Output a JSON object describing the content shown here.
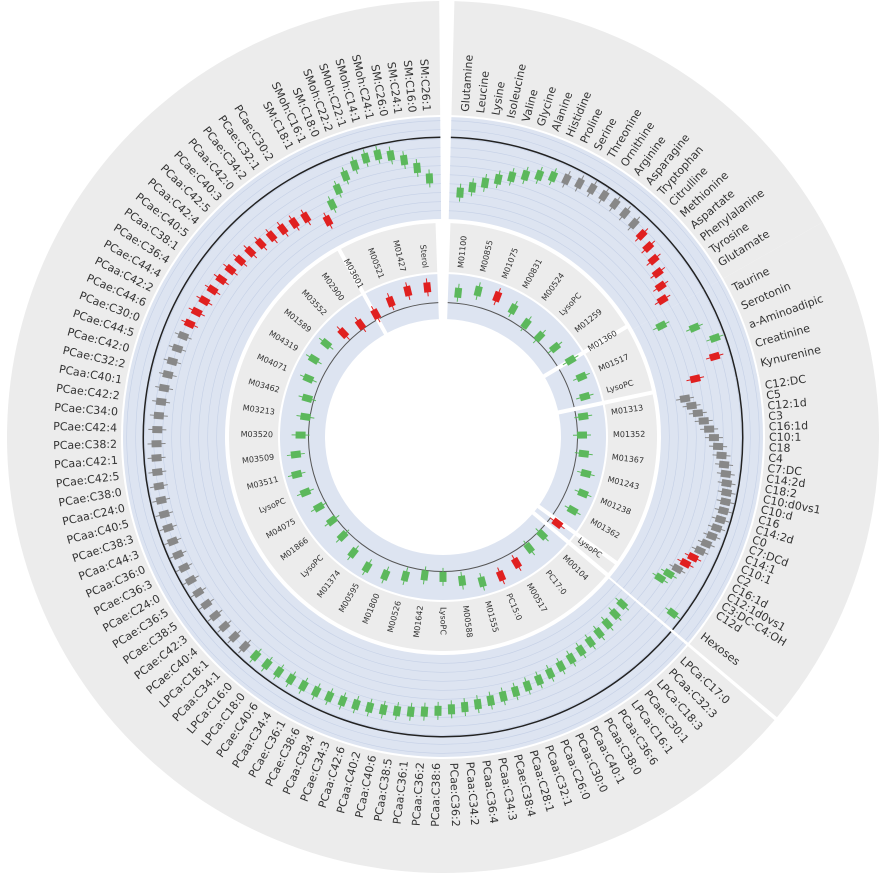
{
  "chart_data": {
    "type": "circos",
    "groups": [
      {
        "labels": [
          "Glutamine",
          "Leucine",
          "Lysine",
          "Isoleucine",
          "Valine",
          "Glycine",
          "Alanine",
          "Histidine",
          "Proline",
          "Serine",
          "Threonine",
          "Ornithine",
          "Arginine",
          "Asparagine",
          "Tryptophan",
          "Citrulline",
          "Methionine",
          "Aspartate",
          "Phenylalanine",
          "Tyrosine",
          "Glutamate"
        ],
        "colors": [
          "#5cb85c",
          "#5cb85c",
          "#5cb85c",
          "#5cb85c",
          "#5cb85c",
          "#5cb85c",
          "#5cb85c",
          "#5cb85c",
          "#888888",
          "#888888",
          "#888888",
          "#888888",
          "#888888",
          "#888888",
          "#888888",
          "#e02020",
          "#e02020",
          "#e02020",
          "#e02020",
          "#e02020",
          "#e02020"
        ]
      },
      {
        "labels": [
          "Taurine",
          "Serotonin",
          "a-Aminoadipic",
          "Creatinine",
          "Kynurenine"
        ],
        "colors": [
          "#5cb85c",
          "#5cb85c",
          "#5cb85c",
          "#e02020",
          "#e02020"
        ]
      },
      {
        "labels": [
          "C12:DC",
          "C5",
          "C12:1d",
          "C3",
          "C16:1d",
          "C10:1",
          "C18",
          "C4",
          "C7:DC",
          "C14:2d",
          "C18:2",
          "C10:d0vs1",
          "C10:d",
          "C16",
          "C14:2d",
          "C0",
          "C7:DCd",
          "C14:1",
          "C10:1",
          "C2",
          "C16:1d",
          "C12:1d0vs1",
          "C3:DC-C4:OH",
          "C12d"
        ],
        "colors": [
          "#888888",
          "#888888",
          "#888888",
          "#888888",
          "#888888",
          "#888888",
          "#888888",
          "#888888",
          "#888888",
          "#888888",
          "#888888",
          "#888888",
          "#888888",
          "#888888",
          "#888888",
          "#888888",
          "#888888",
          "#888888",
          "#888888",
          "#e02020",
          "#e02020",
          "#888888",
          "#5cb85c",
          "#5cb85c"
        ]
      },
      {
        "labels": [
          "Hexoses"
        ],
        "colors": [
          "#5cb85c"
        ]
      },
      {
        "labels": [
          "LPCa:C17:0",
          "PCaa:C32:3",
          "LPCa:C18:3",
          "PCae:C30:1",
          "LPCa:C16:1",
          "PCaa:C36:6",
          "PCaa:C38:0",
          "PCaa:C40:1",
          "PCaa:C30:0",
          "PCaa:C26:0",
          "PCaa:C32:1",
          "PCaa:C28:1",
          "PCae:C38:4",
          "PCaa:C34:3",
          "PCaa:C36:4",
          "PCaa:C34:2",
          "PCae:C36:2",
          "PCaa:C38:6",
          "PCaa:C36:2",
          "PCaa:C36:1",
          "PCaa:C38:5",
          "PCaa:C40:6",
          "PCaa:C40:2",
          "PCaa:C42:6",
          "PCae:C34:3",
          "PCaa:C38:4",
          "PCae:C38:6",
          "PCae:C36:1",
          "PCaa:C34:4",
          "PCae:C40:6",
          "LPCa:C18:0",
          "LPCa:C16:0",
          "PCaa:C34:1",
          "LPCa:C18:1",
          "PCae:C40:4",
          "PCae:C42:3",
          "PCae:C38:5",
          "PCae:C36:5",
          "PCae:C24:0",
          "PCae:C36:3",
          "PCaa:C36:0",
          "PCaa:C44:3",
          "PCae:C38:3",
          "PCaa:C40:5",
          "PCaa:C24:0",
          "PCae:C38:0",
          "PCae:C42:5",
          "PCaa:C42:1",
          "PCae:C38:2",
          "PCae:C42:4",
          "PCae:C34:0",
          "PCae:C42:2",
          "PCaa:C40:1",
          "PCae:C32:2",
          "PCae:C42:0",
          "PCae:C44:5",
          "PCae:C30:0",
          "PCae:C44:6",
          "PCaa:C42:2",
          "PCae:C44:4",
          "PCae:C36:4",
          "PCaa:C38:1",
          "PCae:C40:5",
          "PCaa:C42:4",
          "PCaa:C42:5",
          "PCae:C40:3",
          "PCaa:C42:0",
          "PCae:C34:2",
          "PCae:C32:1",
          "PCae:C30:2"
        ],
        "colors": [
          "#5cb85c",
          "#5cb85c",
          "#5cb85c",
          "#5cb85c",
          "#5cb85c",
          "#5cb85c",
          "#5cb85c",
          "#5cb85c",
          "#5cb85c",
          "#5cb85c",
          "#5cb85c",
          "#5cb85c",
          "#5cb85c",
          "#5cb85c",
          "#5cb85c",
          "#5cb85c",
          "#5cb85c",
          "#5cb85c",
          "#5cb85c",
          "#5cb85c",
          "#5cb85c",
          "#5cb85c",
          "#5cb85c",
          "#5cb85c",
          "#5cb85c",
          "#5cb85c",
          "#5cb85c",
          "#5cb85c",
          "#5cb85c",
          "#5cb85c",
          "#5cb85c",
          "#5cb85c",
          "#888888",
          "#888888",
          "#888888",
          "#888888",
          "#888888",
          "#888888",
          "#888888",
          "#888888",
          "#888888",
          "#888888",
          "#888888",
          "#888888",
          "#888888",
          "#888888",
          "#888888",
          "#888888",
          "#888888",
          "#888888",
          "#888888",
          "#888888",
          "#888888",
          "#888888",
          "#888888",
          "#888888",
          "#888888",
          "#e02020",
          "#e02020",
          "#e02020",
          "#e02020",
          "#e02020",
          "#e02020",
          "#e02020",
          "#e02020",
          "#e02020",
          "#e02020",
          "#e02020",
          "#e02020",
          "#e02020"
        ]
      },
      {
        "labels": [
          "SM:C18:1",
          "SMoh:C16:1",
          "SM:C18:0",
          "SMoh:C22:2",
          "SMoh:C22:1",
          "SMoh:C14:1",
          "SMoh:C24:1",
          "SM:C26:0",
          "SM:C24:1",
          "SM:C16:0",
          "SM:C26:1"
        ],
        "colors": [
          "#e02020",
          "#5cb85c",
          "#5cb85c",
          "#5cb85c",
          "#5cb85c",
          "#5cb85c",
          "#5cb85c",
          "#5cb85c",
          "#5cb85c",
          "#5cb85c",
          "#5cb85c"
        ]
      }
    ],
    "inner": {
      "labels": [
        "M01100",
        "M00855",
        "M01075",
        "M00831",
        "M00524",
        "LysoPC",
        "M01259",
        "M01360",
        "M01517",
        "LysoPC",
        "M01313",
        "M01352",
        "M01367",
        "M01243",
        "M01238",
        "M01362",
        "LysoPC",
        "M00104",
        "PC17:0",
        "M00517",
        "PC15:0",
        "M01555",
        "M00588",
        "LysoPC",
        "M01642",
        "M00526",
        "M01800",
        "M00595",
        "M01374",
        "LysoPC",
        "M01866",
        "M04075",
        "LysoPC",
        "M03511",
        "M03509",
        "M03520",
        "M03213",
        "M03462",
        "M04071",
        "M04319",
        "M01589",
        "M03552",
        "M02900",
        "M03601",
        "M00521",
        "M01427",
        "Sterol"
      ],
      "colors": [
        "#5cb85c",
        "#5cb85c",
        "#e02020",
        "#5cb85c",
        "#5cb85c",
        "#5cb85c",
        "#5cb85c",
        "#5cb85c",
        "#5cb85c",
        "#5cb85c",
        "#5cb85c",
        "#5cb85c",
        "#5cb85c",
        "#5cb85c",
        "#5cb85c",
        "#5cb85c",
        "#e02020",
        "#5cb85c",
        "#5cb85c",
        "#e02020",
        "#e02020",
        "#5cb85c",
        "#5cb85c",
        "#5cb85c",
        "#5cb85c",
        "#5cb85c",
        "#5cb85c",
        "#5cb85c",
        "#5cb85c",
        "#5cb85c",
        "#5cb85c",
        "#5cb85c",
        "#5cb85c",
        "#5cb85c",
        "#5cb85c",
        "#5cb85c",
        "#5cb85c",
        "#5cb85c",
        "#5cb85c",
        "#5cb85c",
        "#5cb85c",
        "#e02020",
        "#e02020",
        "#e02020",
        "#e02020",
        "#e02020",
        "#e02020"
      ]
    }
  }
}
